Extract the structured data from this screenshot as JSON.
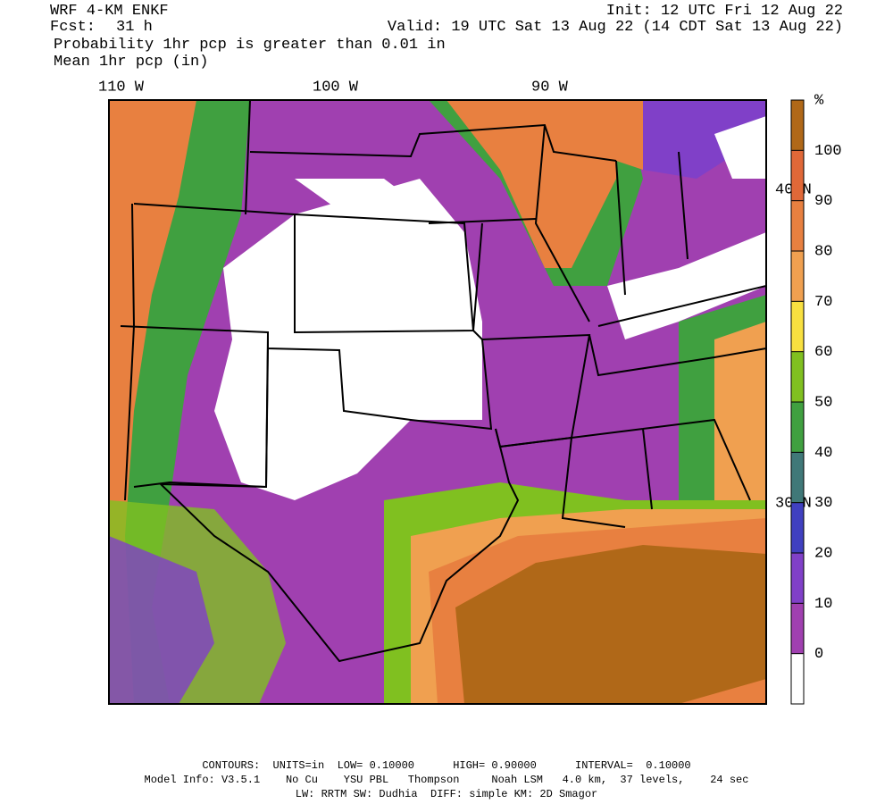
{
  "header": {
    "model": "WRF 4-KM ENKF",
    "init": "Init: 12 UTC Fri 12 Aug 22",
    "fcst_label": "Fcst:",
    "fcst_value": "31 h",
    "valid": "Valid: 19 UTC Sat 13 Aug 22 (14 CDT Sat 13 Aug 22)",
    "title": "Probability 1hr pcp is greater than 0.01 in",
    "subtitle": "Mean 1hr pcp (in)"
  },
  "map": {
    "lon_labels": [
      "110 W",
      "100 W",
      "90 W"
    ],
    "lat_labels": [
      "40 N",
      "30 N"
    ]
  },
  "colorbar": {
    "unit": "%",
    "ticks": [
      0,
      10,
      20,
      30,
      40,
      50,
      60,
      70,
      80,
      90,
      100
    ],
    "colors": [
      "#ffffff",
      "#a040b0",
      "#8040c8",
      "#4040c0",
      "#407878",
      "#40a040",
      "#80c020",
      "#f8e040",
      "#f0a050",
      "#e88040",
      "#e06838",
      "#b06818"
    ]
  },
  "footer": {
    "lines": [
      "CONTOURS:  UNITS=in  LOW= 0.10000      HIGH= 0.90000      INTERVAL=  0.10000",
      "Model Info: V3.5.1    No Cu    YSU PBL   Thompson     Noah LSM   4.0 km,  37 levels,    24 sec",
      "LW: RRTM SW: Dudhia  DIFF: simple KM: 2D Smagor"
    ]
  }
}
